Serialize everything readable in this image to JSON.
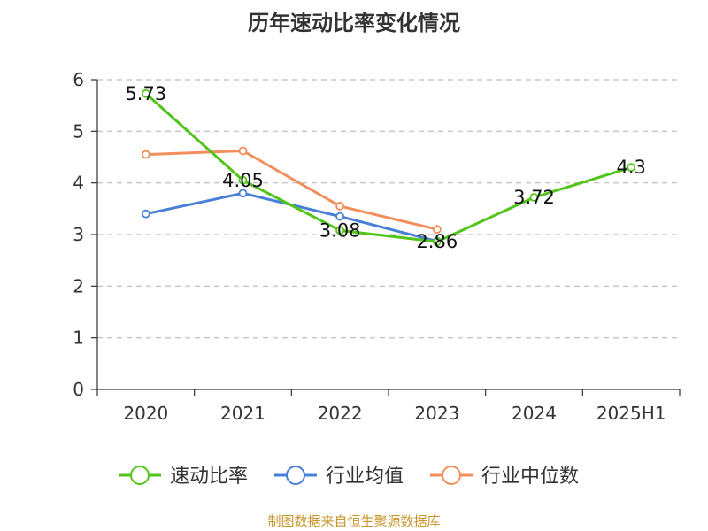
{
  "chart_data": {
    "type": "line",
    "title": "历年速动比率变化情况",
    "categories": [
      "2020",
      "2021",
      "2022",
      "2023",
      "2024",
      "2025H1"
    ],
    "ylim": [
      0,
      6
    ],
    "yticks": [
      "0",
      "1",
      "2",
      "3",
      "4",
      "5",
      "6"
    ],
    "grid": true,
    "legend_position": "bottom",
    "series": [
      {
        "name": "速动比率",
        "color": "#52c41a",
        "values": [
          5.73,
          4.05,
          3.08,
          2.86,
          3.72,
          4.3
        ],
        "labels": [
          "5.73",
          "4.05",
          "3.08",
          "2.86",
          "3.72",
          "4.3"
        ]
      },
      {
        "name": "行业均值",
        "color": "#4a7fd6",
        "values": [
          3.4,
          3.8,
          3.35,
          2.87,
          null,
          null
        ]
      },
      {
        "name": "行业中位数",
        "color": "#f28e5b",
        "values": [
          4.55,
          4.62,
          3.55,
          3.1,
          null,
          null
        ]
      }
    ]
  },
  "footer": {
    "source": "制图数据来自恒生聚源数据库"
  }
}
